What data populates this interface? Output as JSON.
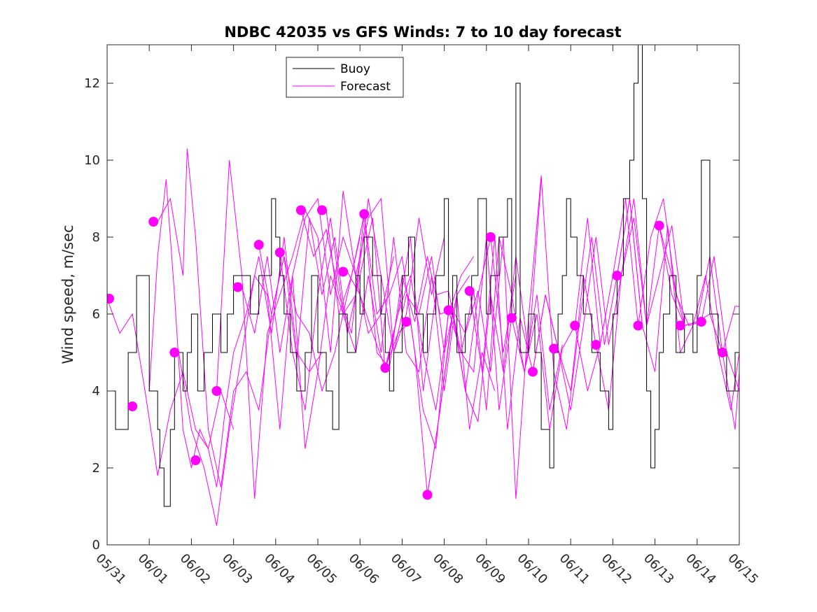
{
  "chart_data": {
    "type": "line",
    "title": "NDBC 42035 vs GFS Winds: 7 to 10 day forecast",
    "xlabel": "",
    "ylabel": "Wind speed, m/sec",
    "xlim": [
      0,
      15
    ],
    "ylim": [
      0,
      13
    ],
    "x_tick_labels": [
      "05/31",
      "06/01",
      "06/02",
      "06/03",
      "06/04",
      "06/05",
      "06/06",
      "06/07",
      "06/08",
      "06/09",
      "06/10",
      "06/11",
      "06/12",
      "06/13",
      "06/14",
      "06/15"
    ],
    "y_ticks": [
      0,
      2,
      4,
      6,
      8,
      10,
      12
    ],
    "grid": false,
    "legend_position": "top-left-center",
    "colors": {
      "buoy": "#000000",
      "forecast": "#ff00ff"
    },
    "series": [
      {
        "name": "Buoy",
        "style": "step",
        "x": [
          0.0,
          0.2,
          0.5,
          0.7,
          1.0,
          1.2,
          1.25,
          1.35,
          1.5,
          1.6,
          1.8,
          1.9,
          2.0,
          2.15,
          2.3,
          2.5,
          2.7,
          2.85,
          3.0,
          3.2,
          3.4,
          3.6,
          3.8,
          3.9,
          4.0,
          4.1,
          4.2,
          4.35,
          4.5,
          4.7,
          4.85,
          5.0,
          5.2,
          5.35,
          5.5,
          5.7,
          5.9,
          6.0,
          6.1,
          6.3,
          6.5,
          6.6,
          6.7,
          6.8,
          7.0,
          7.15,
          7.3,
          7.5,
          7.6,
          7.8,
          8.0,
          8.1,
          8.2,
          8.3,
          8.5,
          8.65,
          8.8,
          9.0,
          9.1,
          9.3,
          9.5,
          9.6,
          9.7,
          9.8,
          10.0,
          10.15,
          10.3,
          10.5,
          10.6,
          10.7,
          10.8,
          10.9,
          11.0,
          11.15,
          11.3,
          11.5,
          11.7,
          11.9,
          12.0,
          12.1,
          12.25,
          12.4,
          12.5,
          12.6,
          12.7,
          12.8,
          12.9,
          13.0,
          13.1,
          13.2,
          13.35,
          13.5,
          13.7,
          13.9,
          14.0,
          14.1,
          14.3,
          14.5,
          14.7,
          14.9,
          15.0
        ],
        "y": [
          4,
          3,
          5,
          7,
          4,
          3,
          2,
          1,
          3,
          5,
          4,
          5,
          6,
          4,
          5,
          6,
          5,
          6,
          7,
          7,
          6,
          7,
          7,
          9,
          8,
          7,
          6,
          5,
          4,
          5,
          7,
          5,
          4,
          3,
          6,
          5,
          7,
          6,
          8,
          7,
          6,
          5,
          4,
          5,
          7,
          8,
          6,
          5,
          6,
          7,
          9,
          6,
          7,
          5,
          6,
          7,
          9,
          6,
          7,
          8,
          9,
          6,
          12,
          5,
          6,
          5,
          3,
          2,
          5,
          6,
          7,
          9,
          8,
          7,
          6,
          5,
          4,
          3,
          6,
          7,
          9,
          10,
          12,
          13,
          9,
          4,
          2,
          3,
          5,
          6,
          7,
          5,
          6,
          5,
          7,
          10,
          6,
          5,
          4,
          5,
          5
        ]
      },
      {
        "name": "Forecast",
        "style": "lines",
        "lines": [
          {
            "x": [
              0.0,
              0.3,
              0.6,
              0.9,
              1.2,
              1.5,
              1.8,
              2.1,
              2.4,
              2.7,
              3.0
            ],
            "y": [
              6.4,
              5.5,
              6.0,
              4.0,
              1.8,
              3.5,
              4.5,
              3.0,
              2.5,
              4.0,
              3.0
            ]
          },
          {
            "x": [
              1.0,
              1.2,
              1.4,
              1.6,
              1.8,
              2.0,
              2.2,
              2.4,
              2.6,
              2.8,
              3.0,
              3.3,
              3.6,
              3.9,
              4.2,
              4.5,
              4.8,
              5.1
            ],
            "y": [
              4.0,
              7.5,
              9.5,
              6.5,
              3.0,
              2.0,
              3.0,
              2.5,
              1.5,
              3.5,
              5.0,
              6.0,
              7.5,
              5.5,
              8.0,
              5.0,
              4.5,
              5.0
            ]
          },
          {
            "x": [
              1.2,
              1.5,
              1.8,
              1.9,
              2.1,
              2.4,
              2.7,
              3.0,
              3.3,
              3.6,
              3.9,
              4.2,
              4.5,
              4.8,
              5.1,
              5.4,
              5.7,
              6.0
            ],
            "y": [
              8.4,
              9.0,
              7.0,
              10.3,
              8.0,
              3.0,
              1.5,
              4.0,
              4.5,
              3.5,
              6.0,
              7.5,
              6.0,
              5.5,
              4.0,
              5.0,
              6.5,
              8.0
            ]
          },
          {
            "x": [
              1.7,
              2.0,
              2.3,
              2.6,
              2.9,
              3.2,
              3.5,
              3.8,
              4.1,
              4.4,
              4.7,
              5.0,
              5.3,
              5.6,
              5.9,
              6.2,
              6.5,
              6.8
            ],
            "y": [
              5.0,
              3.0,
              2.0,
              0.5,
              3.0,
              5.0,
              7.0,
              6.5,
              3.0,
              7.0,
              8.5,
              9.0,
              6.5,
              8.0,
              7.0,
              5.5,
              6.0,
              7.5
            ]
          },
          {
            "x": [
              2.6,
              2.9,
              3.2,
              3.5,
              3.8,
              4.1,
              4.4,
              4.7,
              5.0,
              5.3,
              5.6,
              5.9,
              6.2,
              6.5,
              6.8,
              7.1,
              7.4,
              7.7,
              8.0
            ],
            "y": [
              4.0,
              10.0,
              7.0,
              1.2,
              5.5,
              6.5,
              7.5,
              8.7,
              8.0,
              5.0,
              9.2,
              7.0,
              8.5,
              9.0,
              5.0,
              6.0,
              8.5,
              6.5,
              8.0
            ]
          },
          {
            "x": [
              3.2,
              3.5,
              3.8,
              4.1,
              4.4,
              4.7,
              5.0,
              5.3,
              5.6,
              5.9,
              6.2,
              6.5,
              6.8,
              7.1,
              7.4,
              7.7,
              8.0,
              8.3,
              8.6
            ],
            "y": [
              6.7,
              5.5,
              7.5,
              5.0,
              7.0,
              2.5,
              4.5,
              7.0,
              6.0,
              6.5,
              9.0,
              7.0,
              5.0,
              6.5,
              6.0,
              7.5,
              5.0,
              6.5,
              7.0
            ]
          },
          {
            "x": [
              3.6,
              3.9,
              4.2,
              4.5,
              4.8,
              5.1,
              5.4,
              5.7,
              6.0,
              6.3,
              6.6,
              6.9,
              7.2,
              7.5,
              7.8,
              8.1,
              8.4,
              8.7
            ],
            "y": [
              7.8,
              6.0,
              7.5,
              4.8,
              8.5,
              6.5,
              8.0,
              5.5,
              7.0,
              8.5,
              4.5,
              6.0,
              7.0,
              5.0,
              3.5,
              6.0,
              7.0,
              7.5
            ]
          },
          {
            "x": [
              4.1,
              4.4,
              4.7,
              5.0,
              5.3,
              5.6,
              5.9,
              6.2,
              6.5,
              6.8,
              7.1,
              7.4,
              7.7,
              8.0,
              8.3,
              8.6,
              8.9,
              9.2
            ],
            "y": [
              7.6,
              5.0,
              3.5,
              6.5,
              8.5,
              6.0,
              5.0,
              7.0,
              5.0,
              8.0,
              5.0,
              4.5,
              7.0,
              4.0,
              6.5,
              3.0,
              5.0,
              4.0
            ]
          },
          {
            "x": [
              4.6,
              4.9,
              5.2,
              5.5,
              5.8,
              6.1,
              6.4,
              6.7,
              7.0,
              7.3,
              7.6,
              7.9,
              8.2,
              8.5,
              8.8,
              9.1,
              9.4,
              9.7
            ],
            "y": [
              8.7,
              7.5,
              8.2,
              6.5,
              5.5,
              8.6,
              6.0,
              6.5,
              7.5,
              5.0,
              1.3,
              3.5,
              6.0,
              4.0,
              6.5,
              8.0,
              5.0,
              7.0
            ]
          },
          {
            "x": [
              5.2,
              5.5,
              5.8,
              6.1,
              6.4,
              6.7,
              7.0,
              7.3,
              7.6,
              7.9,
              8.2,
              8.5,
              8.8,
              9.1,
              9.4,
              9.7,
              10.0,
              10.3
            ],
            "y": [
              8.7,
              6.0,
              7.0,
              8.6,
              5.0,
              4.6,
              7.0,
              5.8,
              7.5,
              6.0,
              6.1,
              4.0,
              3.2,
              6.5,
              4.5,
              7.5,
              5.0,
              9.5
            ]
          },
          {
            "x": [
              5.7,
              6.0,
              6.3,
              6.6,
              6.9,
              7.2,
              7.5,
              7.8,
              8.1,
              8.4,
              8.7,
              9.0,
              9.3,
              9.6,
              9.9,
              10.2,
              10.5,
              10.8
            ],
            "y": [
              7.1,
              6.5,
              5.5,
              4.6,
              6.0,
              8.0,
              4.0,
              6.5,
              6.6,
              5.0,
              4.5,
              8.0,
              3.5,
              5.9,
              4.5,
              6.5,
              3.5,
              5.2
            ]
          },
          {
            "x": [
              6.6,
              6.9,
              7.2,
              7.5,
              7.8,
              8.1,
              8.4,
              8.7,
              9.0,
              9.3,
              9.6,
              9.9,
              10.2,
              10.5,
              10.8,
              11.1,
              11.4,
              11.7
            ],
            "y": [
              4.6,
              5.5,
              5.8,
              3.5,
              2.5,
              6.1,
              5.0,
              6.6,
              3.5,
              8.0,
              6.5,
              4.5,
              6.0,
              3.0,
              5.1,
              5.7,
              4.0,
              5.2
            ]
          },
          {
            "x": [
              7.6,
              7.9,
              8.2,
              8.5,
              8.8,
              9.1,
              9.4,
              9.7,
              10.0,
              10.3,
              10.6,
              10.9,
              11.2,
              11.5,
              11.8,
              12.1,
              12.4,
              12.7
            ],
            "y": [
              1.3,
              3.5,
              6.1,
              5.5,
              6.6,
              4.5,
              8.0,
              1.2,
              5.9,
              9.6,
              4.5,
              3.0,
              5.7,
              8.0,
              5.2,
              7.0,
              9.0,
              5.7
            ]
          },
          {
            "x": [
              8.6,
              8.9,
              9.2,
              9.5,
              9.8,
              10.1,
              10.4,
              10.7,
              11.0,
              11.3,
              11.6,
              11.9,
              12.2,
              12.5,
              12.8,
              13.1,
              13.4,
              13.7
            ],
            "y": [
              6.6,
              4.5,
              8.0,
              3.0,
              5.9,
              4.5,
              6.5,
              5.1,
              4.0,
              7.0,
              5.2,
              3.5,
              7.0,
              8.5,
              5.7,
              8.3,
              7.0,
              5.7
            ]
          },
          {
            "x": [
              10.1,
              10.4,
              10.7,
              11.0,
              11.3,
              11.6,
              11.9,
              12.2,
              12.5,
              12.8,
              13.1,
              13.4,
              13.7,
              14.0,
              14.3,
              14.6,
              14.9,
              15.0
            ],
            "y": [
              4.5,
              6.5,
              5.1,
              3.5,
              5.7,
              8.0,
              5.2,
              7.0,
              9.0,
              5.7,
              7.0,
              8.3,
              5.7,
              5.8,
              6.0,
              5.0,
              3.0,
              4.5
            ]
          },
          {
            "x": [
              11.1,
              11.4,
              11.7,
              12.0,
              12.3,
              12.6,
              12.9,
              13.2,
              13.5,
              13.8,
              14.1,
              14.4,
              14.7,
              15.0
            ],
            "y": [
              5.7,
              8.5,
              5.2,
              7.0,
              9.0,
              5.7,
              8.0,
              9.0,
              6.5,
              5.7,
              5.8,
              7.5,
              5.0,
              4.0
            ]
          },
          {
            "x": [
              12.1,
              12.4,
              12.7,
              13.0,
              13.3,
              13.6,
              13.9,
              14.2,
              14.5,
              14.8,
              15.0
            ],
            "y": [
              7.0,
              9.0,
              5.7,
              4.5,
              8.3,
              5.0,
              5.7,
              7.0,
              5.0,
              3.5,
              5.0
            ]
          },
          {
            "x": [
              13.1,
              13.4,
              13.7,
              14.0,
              14.3,
              14.6,
              14.9,
              15.0
            ],
            "y": [
              8.3,
              6.5,
              5.7,
              5.8,
              7.5,
              5.0,
              6.2,
              6.2
            ]
          }
        ],
        "markers": {
          "x": [
            0.05,
            0.6,
            1.1,
            1.6,
            2.1,
            2.6,
            3.1,
            3.6,
            4.1,
            4.6,
            5.1,
            5.6,
            6.1,
            6.6,
            7.1,
            7.6,
            8.1,
            8.6,
            9.1,
            9.6,
            10.1,
            10.6,
            11.1,
            11.6,
            12.1,
            12.6,
            13.1,
            13.6,
            14.1,
            14.6
          ],
          "y": [
            6.4,
            3.6,
            8.4,
            5.0,
            2.2,
            4.0,
            6.7,
            7.8,
            7.6,
            8.7,
            8.7,
            7.1,
            8.6,
            4.6,
            5.8,
            1.3,
            6.1,
            6.6,
            8.0,
            5.9,
            4.5,
            5.1,
            5.7,
            5.2,
            7.0,
            5.7,
            8.3,
            5.7,
            5.8,
            5.0
          ]
        }
      }
    ]
  }
}
